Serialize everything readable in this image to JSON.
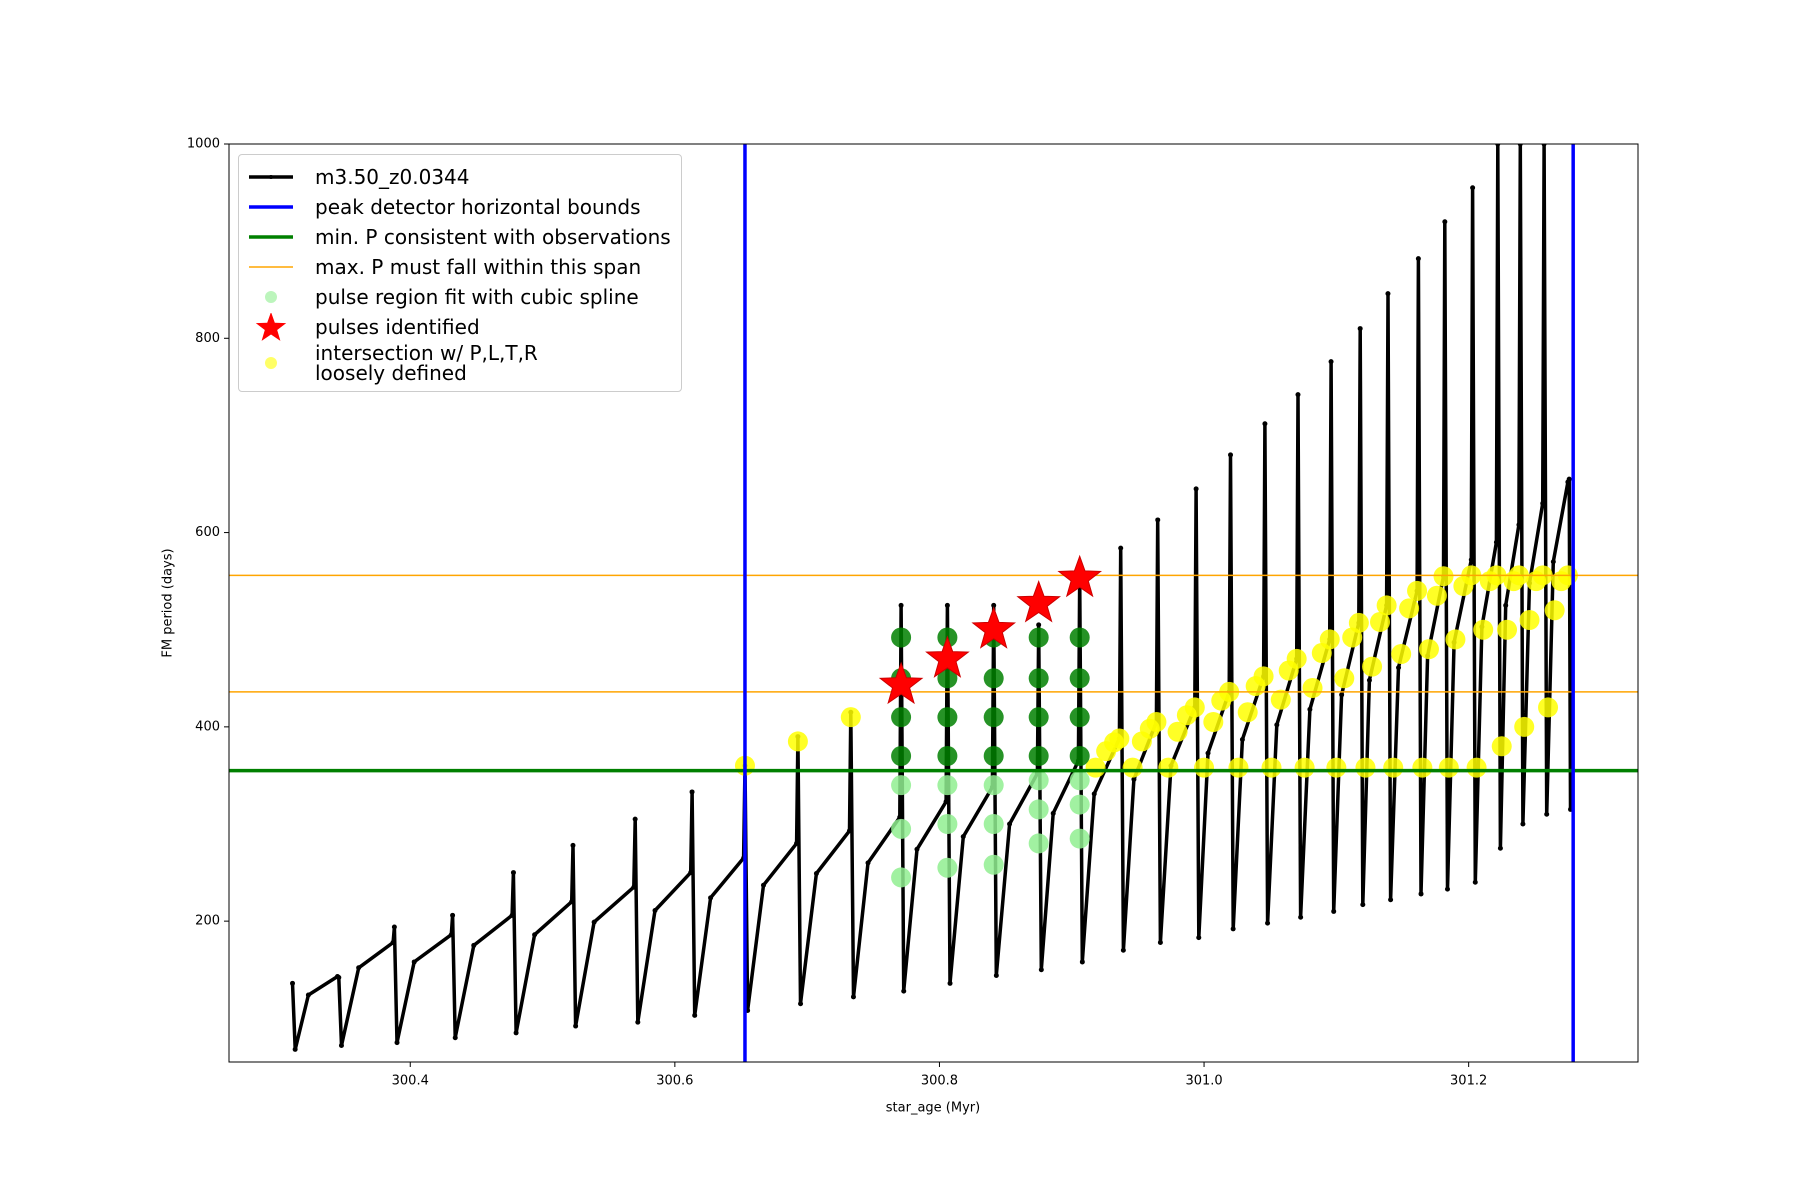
{
  "chart_data": {
    "type": "line",
    "xlabel": "star_age (Myr)",
    "ylabel": "FM period (days)",
    "xlim": [
      300.263,
      301.328
    ],
    "ylim": [
      55,
      1000
    ],
    "xticks": [
      300.4,
      300.6,
      300.8,
      {
        "value": 301,
        "label": "301.0"
      },
      301.2
    ],
    "yticks": [
      200,
      400,
      600,
      800,
      1000
    ],
    "legend": "upper left",
    "series": [
      {
        "name": "m3.50_z0.0344",
        "type": "line",
        "color": "#000000",
        "linewidth": 3.5,
        "x": [
          300.311,
          300.313,
          300.323,
          300.345,
          300.346,
          300.348,
          300.361,
          300.387,
          300.388,
          300.39,
          300.403,
          300.431,
          300.432,
          300.434,
          300.448,
          300.477,
          300.478,
          300.48,
          300.494,
          300.522,
          300.523,
          300.525,
          300.539,
          300.569,
          300.57,
          300.572,
          300.585,
          300.612,
          300.613,
          300.615,
          300.627,
          300.652,
          300.653,
          300.655,
          300.667,
          300.692,
          300.693,
          300.695,
          300.707,
          300.732,
          300.733,
          300.735,
          300.746,
          300.77,
          300.771,
          300.773,
          300.783,
          300.805,
          300.806,
          300.808,
          300.818,
          300.84,
          300.841,
          300.843,
          300.853,
          300.874,
          300.875,
          300.877,
          300.886,
          300.905,
          300.906,
          300.908,
          300.917,
          300.936,
          300.937,
          300.939,
          300.947,
          300.964,
          300.965,
          300.967,
          300.975,
          300.993,
          300.994,
          300.996,
          301.003,
          301.019,
          301.02,
          301.022,
          301.029,
          301.045,
          301.046,
          301.048,
          301.055,
          301.07,
          301.071,
          301.073,
          301.08,
          301.095,
          301.096,
          301.098,
          301.104,
          301.117,
          301.118,
          301.12,
          301.125,
          301.138,
          301.139,
          301.141,
          301.147,
          301.161,
          301.162,
          301.164,
          301.169,
          301.181,
          301.182,
          301.184,
          301.189,
          301.202,
          301.203,
          301.205,
          301.21,
          301.221,
          301.222,
          301.224,
          301.228,
          301.238,
          301.239,
          301.241,
          301.246,
          301.256,
          301.257,
          301.259,
          301.264,
          301.275,
          301.276,
          301.277
        ],
        "values": [
          136,
          68,
          124,
          143,
          142,
          72,
          152,
          178,
          194,
          75,
          158,
          186,
          206,
          80,
          175,
          206,
          250,
          85,
          186,
          220,
          278,
          92,
          199,
          235,
          305,
          96,
          211,
          250,
          333,
          103,
          224,
          265,
          360,
          108,
          237,
          280,
          390,
          115,
          249,
          293,
          415,
          122,
          260,
          307,
          525,
          128,
          274,
          323,
          525,
          136,
          287,
          338,
          525,
          144,
          300,
          352,
          505,
          150,
          311,
          365,
          555,
          158,
          331,
          388,
          584,
          170,
          346,
          405,
          613,
          178,
          360,
          420,
          645,
          183,
          373,
          436,
          680,
          192,
          387,
          452,
          712,
          198,
          402,
          470,
          742,
          204,
          418,
          490,
          776,
          210,
          433,
          507,
          810,
          217,
          448,
          525,
          846,
          222,
          461,
          540,
          882,
          228,
          473,
          555,
          920,
          233,
          487,
          572,
          955,
          240,
          503,
          590,
          1000,
          275,
          525,
          608,
          1000,
          300,
          548,
          630,
          1000,
          310,
          570,
          652,
          655,
          315
        ]
      },
      {
        "name": "peak detector horizontal bounds",
        "type": "vline",
        "color": "#0000ff",
        "linewidth": 3.5,
        "x": [
          300.653,
          301.279
        ]
      },
      {
        "name": "min. P consistent with observations",
        "type": "hline",
        "color": "#008000",
        "linewidth": 3.5,
        "values": [
          355
        ]
      },
      {
        "name": "max. P must fall within this span",
        "type": "hline",
        "color": "#ffa500",
        "linewidth": 1.5,
        "values": [
          436,
          556
        ]
      },
      {
        "name": "pulse region fit with cubic spline",
        "type": "scatter",
        "color": "#90ee90",
        "x": [
          300.771,
          300.771,
          300.771,
          300.806,
          300.806,
          300.806,
          300.841,
          300.841,
          300.841,
          300.875,
          300.875,
          300.875,
          300.906,
          300.906,
          300.906
        ],
        "values": [
          245,
          295,
          340,
          255,
          300,
          340,
          258,
          300,
          340,
          280,
          315,
          345,
          285,
          320,
          345
        ]
      },
      {
        "name": "pulses identified",
        "type": "scatter",
        "marker": "star",
        "color": "#ff0000",
        "x": [
          300.771,
          300.806,
          300.841,
          300.875,
          300.906
        ],
        "values": [
          443,
          470,
          500,
          527,
          553
        ]
      },
      {
        "name": "intersection w/ P,L,T,R\nloosely defined",
        "type": "scatter",
        "color": "#ffff00",
        "x": [
          300.653,
          300.693,
          300.733,
          300.918,
          300.926,
          300.932,
          300.936,
          300.946,
          300.953,
          300.959,
          300.964,
          300.973,
          300.98,
          300.987,
          300.993,
          301.0,
          301.007,
          301.013,
          301.019,
          301.026,
          301.033,
          301.039,
          301.045,
          301.051,
          301.058,
          301.064,
          301.07,
          301.076,
          301.082,
          301.089,
          301.095,
          301.1,
          301.106,
          301.112,
          301.117,
          301.122,
          301.127,
          301.133,
          301.138,
          301.143,
          301.149,
          301.155,
          301.161,
          301.165,
          301.17,
          301.176,
          301.181,
          301.185,
          301.19,
          301.196,
          301.202,
          301.206,
          301.211,
          301.216,
          301.221,
          301.225,
          301.229,
          301.234,
          301.238,
          301.242,
          301.246,
          301.251,
          301.256,
          301.26,
          301.265,
          301.27,
          301.275
        ],
        "values": [
          360,
          385,
          410,
          358,
          375,
          384,
          388,
          358,
          385,
          398,
          405,
          358,
          395,
          412,
          420,
          358,
          405,
          427,
          436,
          358,
          415,
          442,
          452,
          358,
          428,
          458,
          470,
          358,
          440,
          476,
          490,
          358,
          450,
          492,
          507,
          358,
          462,
          508,
          525,
          358,
          475,
          522,
          540,
          358,
          480,
          535,
          555,
          358,
          490,
          545,
          556,
          358,
          500,
          550,
          556,
          380,
          500,
          550,
          556,
          400,
          510,
          550,
          556,
          420,
          520,
          550,
          556
        ]
      },
      {
        "type": "scatter",
        "color": "#008000",
        "x": [
          300.771,
          300.771,
          300.771,
          300.771,
          300.806,
          300.806,
          300.806,
          300.806,
          300.841,
          300.841,
          300.841,
          300.841,
          300.875,
          300.875,
          300.875,
          300.875,
          300.906,
          300.906,
          300.906,
          300.906
        ],
        "values": [
          370,
          410,
          450,
          492,
          370,
          410,
          450,
          492,
          370,
          410,
          450,
          492,
          370,
          410,
          450,
          492,
          370,
          410,
          450,
          492
        ]
      }
    ]
  }
}
